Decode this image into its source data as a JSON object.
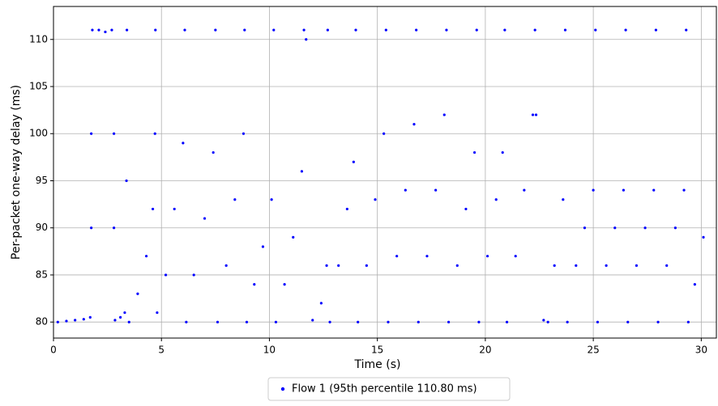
{
  "chart_data": {
    "type": "scatter",
    "xlabel": "Time (s)",
    "ylabel": "Per-packet one-way delay (ms)",
    "xlim": [
      0,
      30.7
    ],
    "ylim": [
      78.3,
      113.5
    ],
    "xticks": [
      0,
      5,
      10,
      15,
      20,
      25,
      30
    ],
    "yticks": [
      80,
      85,
      90,
      95,
      100,
      105,
      110
    ],
    "grid": true,
    "legend": "bottom",
    "series": [
      {
        "name": "Flow 1 (95th percentile 110.80 ms)",
        "color": "#0000ff",
        "x": [
          0.2,
          0.6,
          1.0,
          1.4,
          1.7,
          1.75,
          1.75,
          1.8,
          2.1,
          2.4,
          2.7,
          2.8,
          2.8,
          2.85,
          3.1,
          3.3,
          3.38,
          3.4,
          3.5,
          3.9,
          4.3,
          4.6,
          4.7,
          4.72,
          4.8,
          5.2,
          5.6,
          6.0,
          6.08,
          6.15,
          6.5,
          7.0,
          7.4,
          7.5,
          7.6,
          8.0,
          8.4,
          8.8,
          8.85,
          8.95,
          9.3,
          9.7,
          10.1,
          10.2,
          10.3,
          10.7,
          11.1,
          11.5,
          11.6,
          11.7,
          12.0,
          12.4,
          12.65,
          12.7,
          12.8,
          13.2,
          13.6,
          13.9,
          14.0,
          14.1,
          14.5,
          14.9,
          15.3,
          15.4,
          15.5,
          15.9,
          16.3,
          16.7,
          16.8,
          16.9,
          17.3,
          17.7,
          18.1,
          18.2,
          18.3,
          18.7,
          19.1,
          19.5,
          19.6,
          19.7,
          20.1,
          20.5,
          20.8,
          20.9,
          21.0,
          21.4,
          21.8,
          22.2,
          22.3,
          22.35,
          22.7,
          22.9,
          23.2,
          23.6,
          23.7,
          23.8,
          24.2,
          24.6,
          25.0,
          25.1,
          25.2,
          25.6,
          26.0,
          26.4,
          26.5,
          26.6,
          27.0,
          27.4,
          27.8,
          27.9,
          28.0,
          28.4,
          28.8,
          29.2,
          29.3,
          29.4,
          29.7,
          30.1
        ],
        "values": [
          80,
          80.1,
          80.2,
          80.3,
          80.5,
          90,
          100,
          111,
          111,
          110.8,
          111,
          100,
          90,
          80.2,
          80.5,
          81,
          95,
          111,
          80,
          83,
          87,
          92,
          100,
          111,
          81,
          85,
          92,
          99,
          111,
          80,
          85,
          91,
          98,
          111,
          80,
          86,
          93,
          100,
          111,
          80,
          84,
          88,
          93,
          111,
          80,
          84,
          89,
          96,
          111,
          110,
          80.2,
          82,
          86,
          111,
          80,
          86,
          92,
          97,
          111,
          80,
          86,
          93,
          100,
          111,
          80,
          87,
          94,
          101,
          111,
          80,
          87,
          94,
          102,
          111,
          80,
          86,
          92,
          98,
          111,
          80,
          87,
          93,
          98,
          111,
          80,
          87,
          94,
          102,
          111,
          102,
          80.2,
          80,
          86,
          93,
          111,
          80,
          86,
          90,
          94,
          111,
          80,
          86,
          90,
          94,
          111,
          80,
          86,
          90,
          94,
          111,
          80,
          86,
          90,
          94,
          111,
          80,
          84,
          89
        ]
      }
    ]
  }
}
